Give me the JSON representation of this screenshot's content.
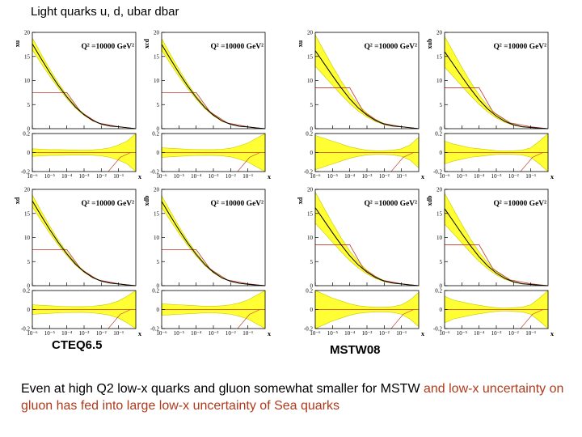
{
  "slide": {
    "title": "Light quarks u, d, ubar dbar",
    "label_left": "CTEQ6.5",
    "label_right": "MSTW08",
    "caption_part1": "Even at high Q2 low-x quarks and gluon somewhat smaller for MSTW ",
    "caption_part2": "and low-x uncertainty on gluon has fed into large low-x uncertainty of Sea quarks"
  },
  "colors": {
    "band": "#ffff33",
    "band_edge": "#c8c800",
    "central": "#000000",
    "reference": "#c0392b",
    "caption_highlight": "#b03a1c"
  },
  "chart_data": [
    {
      "type": "line",
      "group": "CTEQ6.5",
      "ylabel": "xu",
      "annotation": "Q² =10000 GeV²",
      "top_ylim": [
        0,
        20
      ],
      "top_yticks": [
        "0",
        "5",
        "10",
        "15",
        "20"
      ],
      "bottom_ylim": [
        -0.2,
        0.2
      ],
      "bottom_yticks": [
        "-0.2",
        "0",
        "0.2"
      ],
      "xlabel": "x",
      "xticks": [
        "10⁻⁶",
        "10⁻⁵",
        "10⁻⁴",
        "10⁻³",
        "10⁻²",
        "10⁻¹"
      ],
      "x": [
        -6,
        -5.5,
        -5,
        -4.5,
        -4,
        -3.5,
        -3,
        -2.5,
        -2,
        -1.5,
        -1,
        -0.5,
        0
      ],
      "y": [
        17.6,
        14.6,
        11.7,
        9.0,
        6.6,
        4.5,
        2.9,
        1.7,
        0.95,
        0.55,
        0.4,
        0.2,
        0
      ],
      "rel_unc": 0.07,
      "ratio_band": [
        0.04,
        0.035,
        0.03,
        0.03,
        0.028,
        0.026,
        0.025,
        0.028,
        0.035,
        0.05,
        0.08,
        0.12,
        0.2
      ],
      "ref_level": 7.5
    },
    {
      "type": "line",
      "group": "CTEQ6.5",
      "ylabel": "xcd",
      "annotation": "Q² =10000 GeV²",
      "top_ylim": [
        0,
        20
      ],
      "top_yticks": [
        "0",
        "5",
        "10",
        "15",
        "20"
      ],
      "bottom_ylim": [
        -0.2,
        0.2
      ],
      "bottom_yticks": [
        "-0.2",
        "0",
        "0.2"
      ],
      "xlabel": "x",
      "xticks": [
        "10⁻⁶",
        "10⁻⁵",
        "10⁻⁴",
        "10⁻³",
        "10⁻²",
        "10⁻¹"
      ],
      "x": [
        -6,
        -5.5,
        -5,
        -4.5,
        -4,
        -3.5,
        -3,
        -2.5,
        -2,
        -1.5,
        -1,
        -0.5,
        0
      ],
      "y": [
        17.5,
        14.5,
        11.6,
        8.9,
        6.5,
        4.4,
        2.8,
        1.6,
        0.9,
        0.5,
        0.35,
        0.15,
        0
      ],
      "rel_unc": 0.07,
      "ratio_band": [
        0.05,
        0.045,
        0.04,
        0.035,
        0.032,
        0.03,
        0.03,
        0.035,
        0.045,
        0.07,
        0.1,
        0.15,
        0.2
      ],
      "ref_level": 7.5
    },
    {
      "type": "line",
      "group": "MSTW08",
      "ylabel": "xu",
      "annotation": "Q² =10000 GeV²",
      "top_ylim": [
        0,
        20
      ],
      "top_yticks": [
        "0",
        "5",
        "10",
        "15",
        "20"
      ],
      "bottom_ylim": [
        -0.2,
        0.2
      ],
      "bottom_yticks": [
        "-0.2",
        "0",
        "0.2"
      ],
      "xlabel": "x",
      "xticks": [
        "10⁻⁶",
        "10⁻⁵",
        "10⁻⁴",
        "10⁻³",
        "10⁻²",
        "10⁻¹"
      ],
      "x": [
        -6,
        -5.5,
        -5,
        -4.5,
        -4,
        -3.5,
        -3,
        -2.5,
        -2,
        -1.5,
        -1,
        -0.5,
        0
      ],
      "y": [
        16.2,
        13.6,
        11.0,
        8.5,
        6.2,
        4.3,
        2.8,
        1.7,
        0.95,
        0.55,
        0.4,
        0.2,
        0
      ],
      "rel_unc": 0.2,
      "ratio_band": [
        0.18,
        0.15,
        0.12,
        0.09,
        0.06,
        0.04,
        0.025,
        0.02,
        0.02,
        0.025,
        0.04,
        0.08,
        0.16
      ],
      "ref_level": 8.5
    },
    {
      "type": "line",
      "group": "MSTW08",
      "ylabel": "xub",
      "annotation": "Q² =10000 GeV²",
      "top_ylim": [
        0,
        20
      ],
      "top_yticks": [
        "0",
        "5",
        "10",
        "15",
        "20"
      ],
      "bottom_ylim": [
        -0.2,
        0.2
      ],
      "bottom_yticks": [
        "-0.2",
        "0",
        "0.2"
      ],
      "xlabel": "x",
      "xticks": [
        "10⁻⁶",
        "10⁻⁵",
        "10⁻⁴",
        "10⁻³",
        "10⁻²",
        "10⁻¹"
      ],
      "x": [
        -6,
        -5.5,
        -5,
        -4.5,
        -4,
        -3.5,
        -3,
        -2.5,
        -2,
        -1.5,
        -1,
        -0.5,
        0
      ],
      "y": [
        16.0,
        13.4,
        10.8,
        8.3,
        6.0,
        4.1,
        2.6,
        1.5,
        0.8,
        0.4,
        0.25,
        0.1,
        0
      ],
      "rel_unc": 0.2,
      "ratio_band": [
        0.12,
        0.09,
        0.07,
        0.05,
        0.04,
        0.03,
        0.02,
        0.018,
        0.02,
        0.025,
        0.05,
        0.12,
        0.2
      ],
      "ref_level": 8.5
    },
    {
      "type": "line",
      "group": "CTEQ6.5",
      "ylabel": "xd",
      "annotation": "Q² =10000 GeV²",
      "top_ylim": [
        0,
        20
      ],
      "top_yticks": [
        "0",
        "5",
        "10",
        "15",
        "20"
      ],
      "bottom_ylim": [
        -0.2,
        0.2
      ],
      "bottom_yticks": [
        "-0.2",
        "0",
        "0.2"
      ],
      "xlabel": "x",
      "xticks": [
        "10⁻⁶",
        "10⁻⁵",
        "10⁻⁴",
        "10⁻³",
        "10⁻²",
        "10⁻¹"
      ],
      "x": [
        -6,
        -5.5,
        -5,
        -4.5,
        -4,
        -3.5,
        -3,
        -2.5,
        -2,
        -1.5,
        -1,
        -0.5,
        0
      ],
      "y": [
        17.6,
        14.6,
        11.7,
        9.0,
        6.6,
        4.5,
        2.9,
        1.7,
        0.95,
        0.55,
        0.35,
        0.15,
        0
      ],
      "rel_unc": 0.07,
      "ratio_band": [
        0.05,
        0.045,
        0.04,
        0.035,
        0.032,
        0.03,
        0.03,
        0.035,
        0.045,
        0.06,
        0.09,
        0.14,
        0.2
      ],
      "ref_level": 7.5
    },
    {
      "type": "line",
      "group": "CTEQ6.5",
      "ylabel": "xdb",
      "annotation": "Q² =10000 GeV²",
      "top_ylim": [
        0,
        20
      ],
      "top_yticks": [
        "0",
        "5",
        "10",
        "15",
        "20"
      ],
      "bottom_ylim": [
        -0.2,
        0.2
      ],
      "bottom_yticks": [
        "-0.2",
        "0",
        "0.2"
      ],
      "xlabel": "x",
      "xticks": [
        "10⁻⁶",
        "10⁻⁵",
        "10⁻⁴",
        "10⁻³",
        "10⁻²",
        "10⁻¹"
      ],
      "x": [
        -6,
        -5.5,
        -5,
        -4.5,
        -4,
        -3.5,
        -3,
        -2.5,
        -2,
        -1.5,
        -1,
        -0.5,
        0
      ],
      "y": [
        17.5,
        14.5,
        11.6,
        8.9,
        6.5,
        4.4,
        2.8,
        1.6,
        0.9,
        0.5,
        0.3,
        0.12,
        0
      ],
      "rel_unc": 0.07,
      "ratio_band": [
        0.06,
        0.055,
        0.05,
        0.045,
        0.04,
        0.035,
        0.035,
        0.04,
        0.05,
        0.07,
        0.1,
        0.15,
        0.2
      ],
      "ref_level": 7.5
    },
    {
      "type": "line",
      "group": "MSTW08",
      "ylabel": "xd",
      "annotation": "Q² =10000 GeV²",
      "top_ylim": [
        0,
        20
      ],
      "top_yticks": [
        "0",
        "5",
        "10",
        "15",
        "20"
      ],
      "bottom_ylim": [
        -0.2,
        0.2
      ],
      "bottom_yticks": [
        "-0.2",
        "0",
        "0.2"
      ],
      "xlabel": "x",
      "xticks": [
        "10⁻⁶",
        "10⁻⁵",
        "10⁻⁴",
        "10⁻³",
        "10⁻²",
        "10⁻¹"
      ],
      "x": [
        -6,
        -5.5,
        -5,
        -4.5,
        -4,
        -3.5,
        -3,
        -2.5,
        -2,
        -1.5,
        -1,
        -0.5,
        0
      ],
      "y": [
        16.2,
        13.6,
        11.0,
        8.5,
        6.2,
        4.3,
        2.8,
        1.7,
        0.95,
        0.55,
        0.35,
        0.15,
        0
      ],
      "rel_unc": 0.2,
      "ratio_band": [
        0.2,
        0.16,
        0.12,
        0.09,
        0.06,
        0.04,
        0.03,
        0.025,
        0.025,
        0.03,
        0.05,
        0.1,
        0.18
      ],
      "ref_level": 8.5
    },
    {
      "type": "line",
      "group": "MSTW08",
      "ylabel": "xdb",
      "annotation": "Q² =10000 GeV²",
      "top_ylim": [
        0,
        20
      ],
      "top_yticks": [
        "0",
        "5",
        "10",
        "15",
        "20"
      ],
      "bottom_ylim": [
        -0.2,
        0.2
      ],
      "bottom_yticks": [
        "-0.2",
        "0",
        "0.2"
      ],
      "xlabel": "x",
      "xticks": [
        "10⁻⁶",
        "10⁻⁵",
        "10⁻⁴",
        "10⁻³",
        "10⁻²",
        "10⁻¹"
      ],
      "x": [
        -6,
        -5.5,
        -5,
        -4.5,
        -4,
        -3.5,
        -3,
        -2.5,
        -2,
        -1.5,
        -1,
        -0.5,
        0
      ],
      "y": [
        16.0,
        13.4,
        10.8,
        8.3,
        6.0,
        4.1,
        2.6,
        1.5,
        0.8,
        0.4,
        0.25,
        0.1,
        0
      ],
      "rel_unc": 0.2,
      "ratio_band": [
        0.14,
        0.1,
        0.08,
        0.06,
        0.045,
        0.03,
        0.02,
        0.015,
        0.02,
        0.025,
        0.05,
        0.12,
        0.2
      ],
      "ref_level": 8.5
    }
  ]
}
